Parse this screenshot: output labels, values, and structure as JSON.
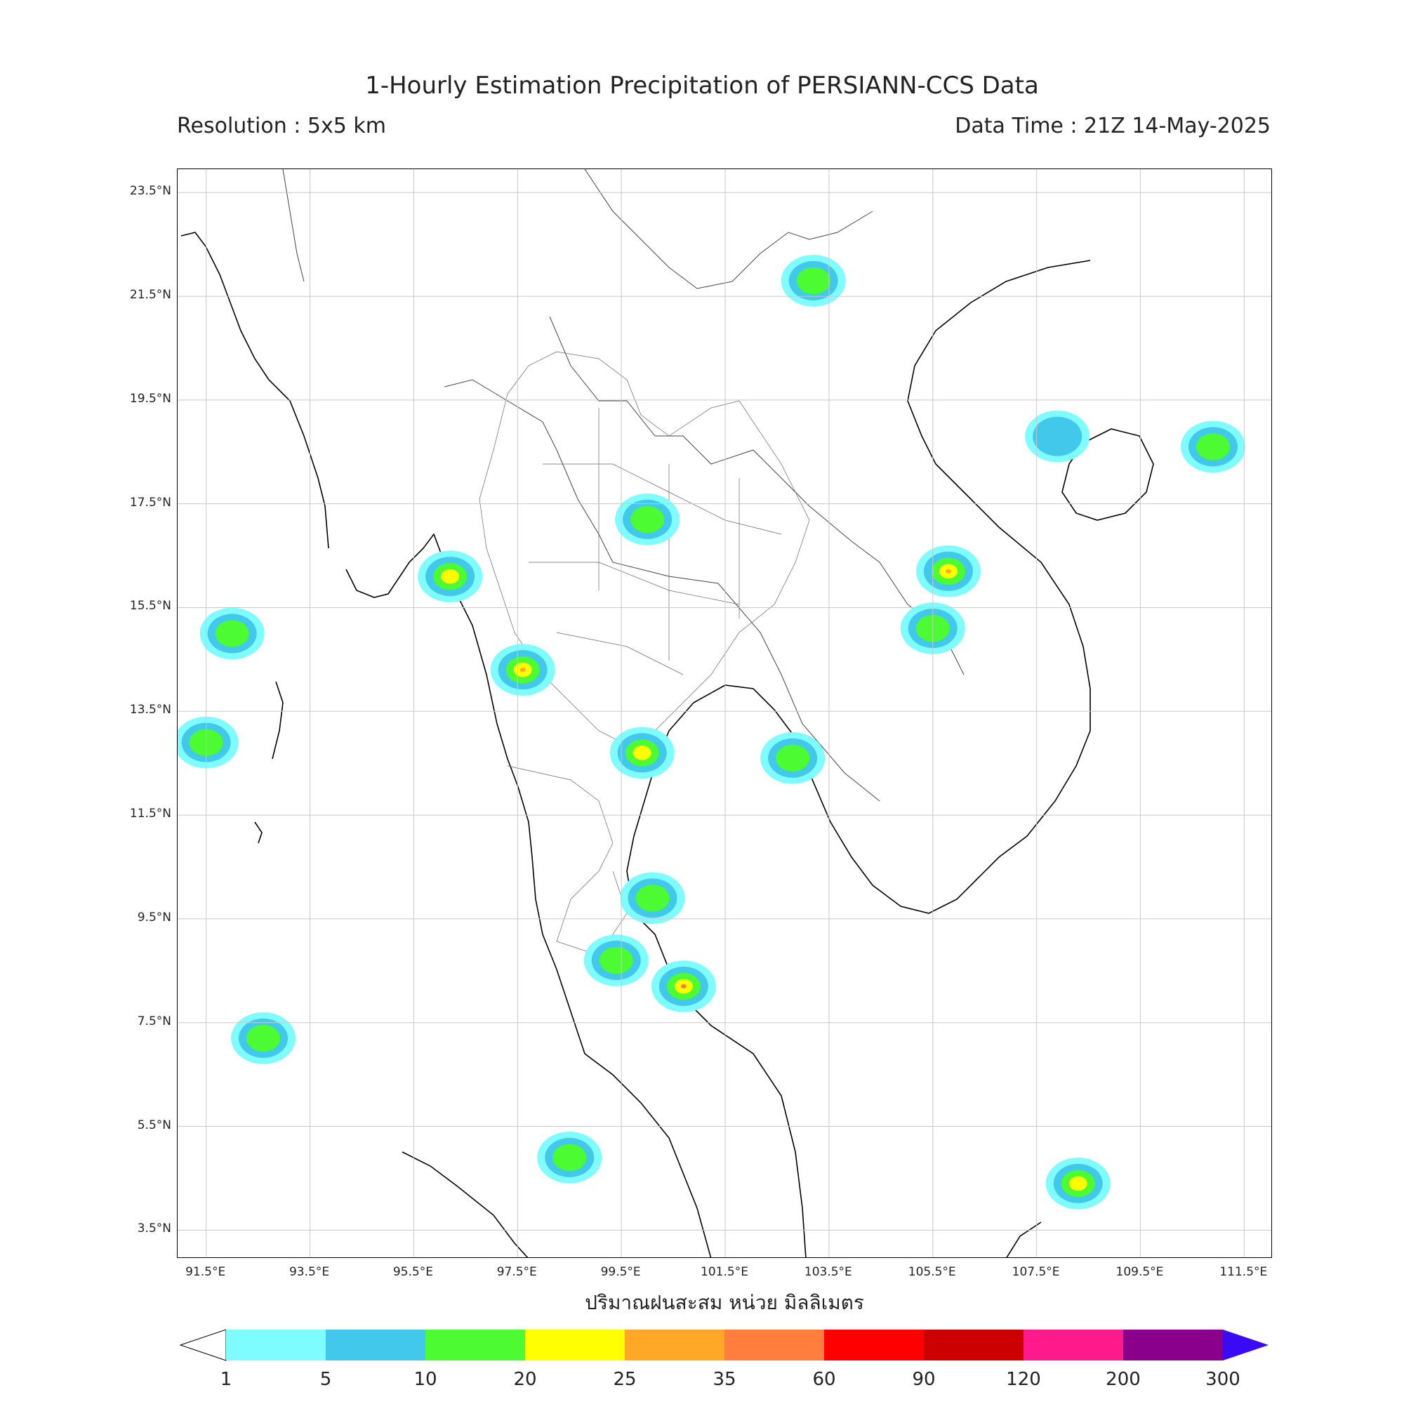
{
  "title": "1-Hourly Estimation Precipitation of PERSIANN-CCS Data",
  "resolution": "Resolution : 5x5 km",
  "data_time": "Data Time : 21Z 14-May-2025",
  "lat_labels": [
    "23.5°N",
    "21.5°N",
    "19.5°N",
    "17.5°N",
    "15.5°N",
    "13.5°N",
    "11.5°N",
    "9.5°N",
    "7.5°N",
    "5.5°N",
    "3.5°N"
  ],
  "lon_labels": [
    "91.5°E",
    "93.5°E",
    "95.5°E",
    "97.5°E",
    "99.5°E",
    "101.5°E",
    "103.5°E",
    "105.5°E",
    "107.5°E",
    "109.5°E",
    "111.5°E"
  ],
  "xaxis_title": "ปริมาณฝนสะสม หน่วย มิลลิเมตร",
  "colorbar": {
    "labels": [
      "1",
      "5",
      "10",
      "20",
      "25",
      "35",
      "60",
      "90",
      "120",
      "200",
      "300"
    ],
    "colors": [
      "#7ffcff",
      "#42c8ea",
      "#4cfb31",
      "#ffff00",
      "#ffa726",
      "#ff7e3e",
      "#ff0000",
      "#cc0000",
      "#ff1a8c",
      "#8b008b"
    ],
    "overflow_color": "#3b0af5",
    "underflow_color": "#ffffff"
  },
  "rain_cells": [
    {
      "lon": 96.2,
      "lat": 16.1,
      "level": 3
    },
    {
      "lon": 97.6,
      "lat": 14.3,
      "level": 4
    },
    {
      "lon": 92.0,
      "lat": 15.0,
      "level": 2
    },
    {
      "lon": 91.5,
      "lat": 12.9,
      "level": 2
    },
    {
      "lon": 92.6,
      "lat": 7.2,
      "level": 2
    },
    {
      "lon": 99.4,
      "lat": 8.7,
      "level": 2
    },
    {
      "lon": 100.7,
      "lat": 8.2,
      "level": 5
    },
    {
      "lon": 103.2,
      "lat": 21.8,
      "level": 2
    },
    {
      "lon": 105.5,
      "lat": 15.1,
      "level": 2
    },
    {
      "lon": 108.3,
      "lat": 4.4,
      "level": 3
    },
    {
      "lon": 110.9,
      "lat": 18.6,
      "level": 2
    },
    {
      "lon": 102.8,
      "lat": 12.6,
      "level": 2
    },
    {
      "lon": 107.9,
      "lat": 18.8,
      "level": 1
    },
    {
      "lon": 98.5,
      "lat": 4.9,
      "level": 2
    },
    {
      "lon": 100.0,
      "lat": 17.2,
      "level": 2
    },
    {
      "lon": 105.8,
      "lat": 16.2,
      "level": 4
    },
    {
      "lon": 99.9,
      "lat": 12.7,
      "level": 3
    },
    {
      "lon": 100.1,
      "lat": 9.9,
      "level": 2
    }
  ]
}
